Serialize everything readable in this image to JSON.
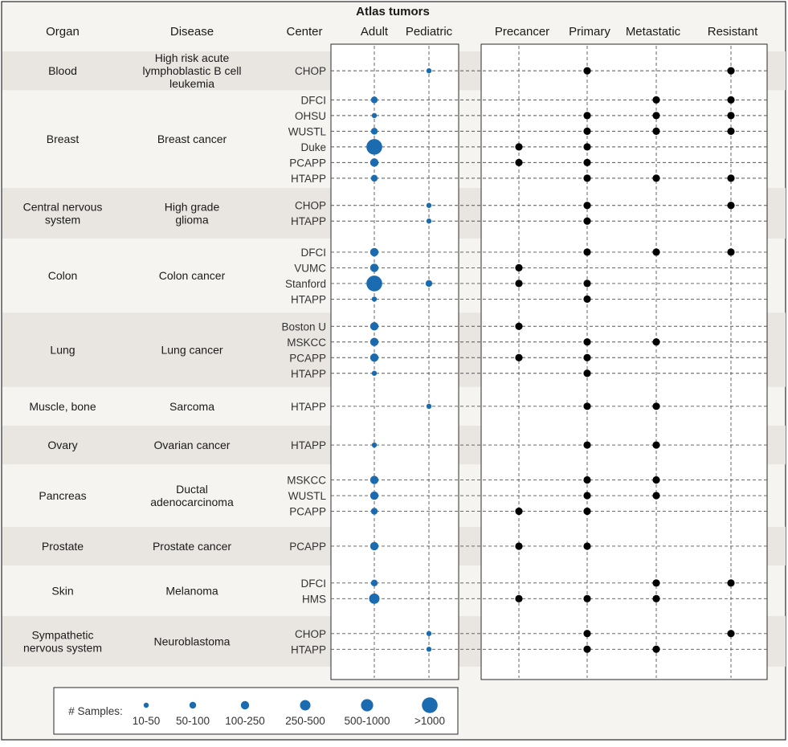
{
  "chart_data": {
    "type": "scatter",
    "title": "Atlas tumors",
    "column_headers": {
      "organ": "Organ",
      "disease": "Disease",
      "center": "Center",
      "adult": "Adult",
      "pediatric": "Pediatric",
      "stages": [
        "Precancer",
        "Primary",
        "Metastatic",
        "Resistant"
      ]
    },
    "groups": [
      {
        "organ": [
          "Blood"
        ],
        "disease": [
          "High risk acute",
          "lymphoblastic B cell",
          "leukemia"
        ],
        "rows": [
          {
            "center": "CHOP",
            "adult": null,
            "pediatric": 1,
            "stages": [
              0,
              1,
              0,
              1
            ]
          }
        ]
      },
      {
        "organ": [
          "Breast"
        ],
        "disease": [
          "Breast cancer"
        ],
        "rows": [
          {
            "center": "DFCI",
            "adult": 2,
            "pediatric": null,
            "stages": [
              0,
              0,
              1,
              1
            ]
          },
          {
            "center": "OHSU",
            "adult": 1,
            "pediatric": null,
            "stages": [
              0,
              1,
              1,
              1
            ]
          },
          {
            "center": "WUSTL",
            "adult": 2,
            "pediatric": null,
            "stages": [
              0,
              1,
              1,
              1
            ]
          },
          {
            "center": "Duke",
            "adult": 6,
            "pediatric": null,
            "stages": [
              1,
              1,
              0,
              0
            ]
          },
          {
            "center": "PCAPP",
            "adult": 3,
            "pediatric": null,
            "stages": [
              1,
              1,
              0,
              0
            ]
          },
          {
            "center": "HTAPP",
            "adult": 2,
            "pediatric": null,
            "stages": [
              0,
              1,
              1,
              1
            ]
          }
        ]
      },
      {
        "organ": [
          "Central nervous",
          "system"
        ],
        "disease": [
          "High grade",
          "glioma"
        ],
        "rows": [
          {
            "center": "CHOP",
            "adult": null,
            "pediatric": 1,
            "stages": [
              0,
              1,
              0,
              1
            ]
          },
          {
            "center": "HTAPP",
            "adult": null,
            "pediatric": 1,
            "stages": [
              0,
              1,
              0,
              0
            ]
          }
        ]
      },
      {
        "organ": [
          "Colon"
        ],
        "disease": [
          "Colon cancer"
        ],
        "rows": [
          {
            "center": "DFCI",
            "adult": 3,
            "pediatric": null,
            "stages": [
              0,
              1,
              1,
              1
            ]
          },
          {
            "center": "VUMC",
            "adult": 3,
            "pediatric": null,
            "stages": [
              1,
              0,
              0,
              0
            ]
          },
          {
            "center": "Stanford",
            "adult": 6,
            "pediatric": 2,
            "stages": [
              1,
              1,
              0,
              0
            ]
          },
          {
            "center": "HTAPP",
            "adult": 1,
            "pediatric": null,
            "stages": [
              0,
              1,
              0,
              0
            ]
          }
        ]
      },
      {
        "organ": [
          "Lung"
        ],
        "disease": [
          "Lung cancer"
        ],
        "rows": [
          {
            "center": "Boston U",
            "adult": 3,
            "pediatric": null,
            "stages": [
              1,
              0,
              0,
              0
            ]
          },
          {
            "center": "MSKCC",
            "adult": 3,
            "pediatric": null,
            "stages": [
              0,
              1,
              1,
              0
            ]
          },
          {
            "center": "PCAPP",
            "adult": 3,
            "pediatric": null,
            "stages": [
              1,
              1,
              0,
              0
            ]
          },
          {
            "center": "HTAPP",
            "adult": 1,
            "pediatric": null,
            "stages": [
              0,
              1,
              0,
              0
            ]
          }
        ]
      },
      {
        "organ": [
          "Muscle, bone"
        ],
        "disease": [
          "Sarcoma"
        ],
        "rows": [
          {
            "center": "HTAPP",
            "adult": null,
            "pediatric": 1,
            "stages": [
              0,
              1,
              1,
              0
            ]
          }
        ]
      },
      {
        "organ": [
          "Ovary"
        ],
        "disease": [
          "Ovarian cancer"
        ],
        "rows": [
          {
            "center": "HTAPP",
            "adult": 1,
            "pediatric": null,
            "stages": [
              0,
              1,
              1,
              0
            ]
          }
        ]
      },
      {
        "organ": [
          "Pancreas"
        ],
        "disease": [
          "Ductal",
          "adenocarcinoma"
        ],
        "rows": [
          {
            "center": "MSKCC",
            "adult": 3,
            "pediatric": null,
            "stages": [
              0,
              1,
              1,
              0
            ]
          },
          {
            "center": "WUSTL",
            "adult": 3,
            "pediatric": null,
            "stages": [
              0,
              1,
              1,
              0
            ]
          },
          {
            "center": "PCAPP",
            "adult": 2,
            "pediatric": null,
            "stages": [
              1,
              1,
              0,
              0
            ]
          }
        ]
      },
      {
        "organ": [
          "Prostate"
        ],
        "disease": [
          "Prostate cancer"
        ],
        "rows": [
          {
            "center": "PCAPP",
            "adult": 3,
            "pediatric": null,
            "stages": [
              1,
              1,
              0,
              0
            ]
          }
        ]
      },
      {
        "organ": [
          "Skin"
        ],
        "disease": [
          "Melanoma"
        ],
        "rows": [
          {
            "center": "DFCI",
            "adult": 2,
            "pediatric": null,
            "stages": [
              0,
              0,
              1,
              1
            ]
          },
          {
            "center": "HMS",
            "adult": 4,
            "pediatric": null,
            "stages": [
              1,
              1,
              1,
              0
            ]
          }
        ]
      },
      {
        "organ": [
          "Sympathetic",
          "nervous system"
        ],
        "disease": [
          "Neuroblastoma"
        ],
        "rows": [
          {
            "center": "CHOP",
            "adult": null,
            "pediatric": 1,
            "stages": [
              0,
              1,
              0,
              1
            ]
          },
          {
            "center": "HTAPP",
            "adult": null,
            "pediatric": 1,
            "stages": [
              0,
              1,
              1,
              0
            ]
          }
        ]
      }
    ],
    "legend": {
      "title": "# Samples:",
      "bins": [
        "10-50",
        "50-100",
        "100-250",
        "250-500",
        "500-1000",
        ">1000"
      ]
    },
    "colors": {
      "sample_dot": "#1a6bb0",
      "stage_dot": "#000000",
      "band_shaded": "#e9e5e1",
      "band_plain": "#f6f4f0",
      "panel": "#ffffff"
    }
  }
}
